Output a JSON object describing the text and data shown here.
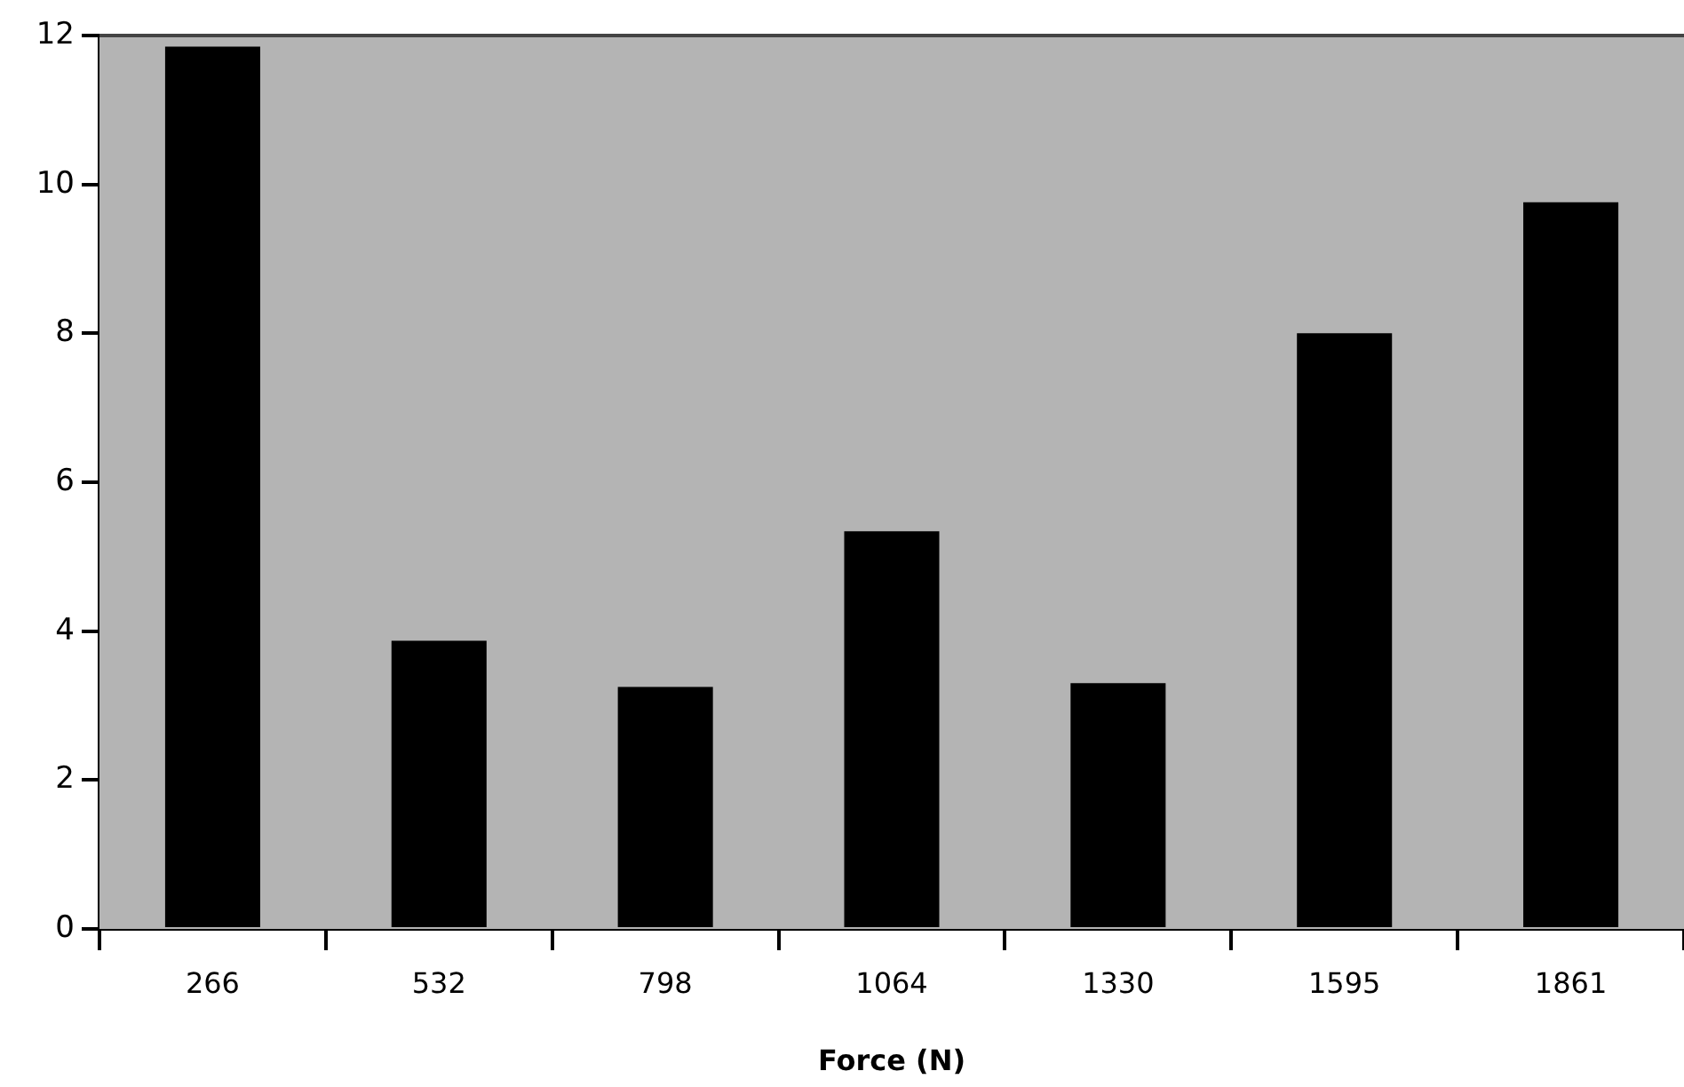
{
  "chart_data": {
    "type": "bar",
    "xlabel": "Force (N)",
    "categories": [
      "266",
      "532",
      "798",
      "1064",
      "1330",
      "1595",
      "1861"
    ],
    "values": [
      11.85,
      3.87,
      3.25,
      5.34,
      3.3,
      8.0,
      9.76
    ],
    "color": "#000000",
    "ylim": [
      0,
      12
    ],
    "yticks": [
      0,
      2,
      4,
      6,
      8,
      10,
      12
    ],
    "legend": false
  }
}
